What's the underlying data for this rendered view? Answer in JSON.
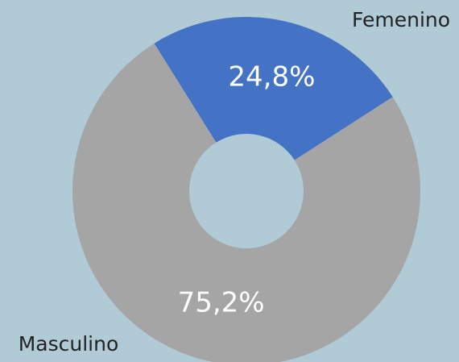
{
  "chart_data": {
    "type": "donut",
    "categories": [
      "Femenino",
      "Masculino"
    ],
    "values": [
      24.8,
      75.2
    ],
    "value_labels": [
      "24,8%",
      "75,2%"
    ],
    "colors": [
      "#4472c4",
      "#a5a5a5"
    ]
  }
}
